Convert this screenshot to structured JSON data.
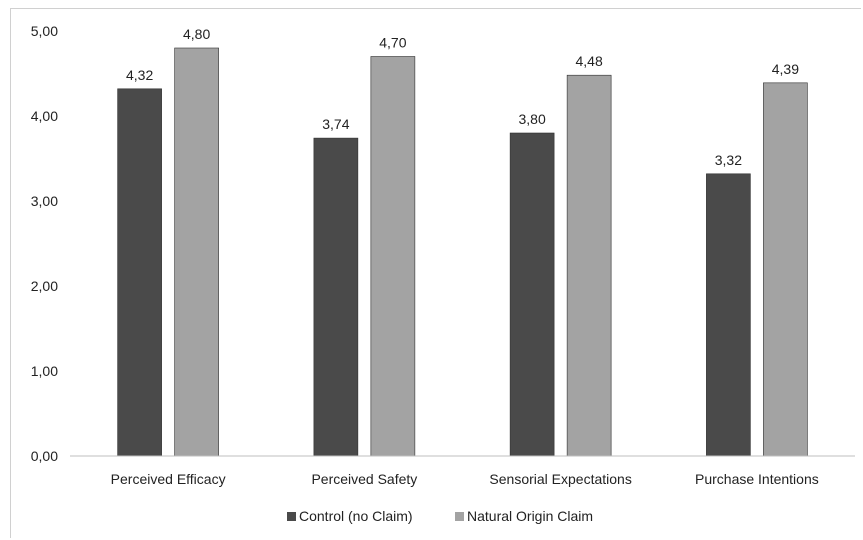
{
  "chart_data": {
    "type": "bar",
    "categories": [
      "Perceived Efficacy",
      "Perceived Safety",
      "Sensorial Expectations",
      "Purchase Intentions"
    ],
    "series": [
      {
        "name": "Control (no Claim)",
        "values": [
          4.32,
          3.74,
          3.8,
          3.32
        ],
        "labels": [
          "4,32",
          "3,74",
          "3,80",
          "3,32"
        ],
        "color": "#4a4a4a"
      },
      {
        "name": "Natural Origin Claim",
        "values": [
          4.8,
          4.7,
          4.48,
          4.39
        ],
        "labels": [
          "4,80",
          "4,70",
          "4,48",
          "4,39"
        ],
        "color": "#a3a3a3"
      }
    ],
    "y_ticks": [
      0,
      1,
      2,
      3,
      4,
      5
    ],
    "y_tick_labels": [
      "0,00",
      "1,00",
      "2,00",
      "3,00",
      "4,00",
      "5,00"
    ],
    "ylim": [
      0,
      5
    ],
    "grid": false,
    "legend_position": "bottom"
  }
}
